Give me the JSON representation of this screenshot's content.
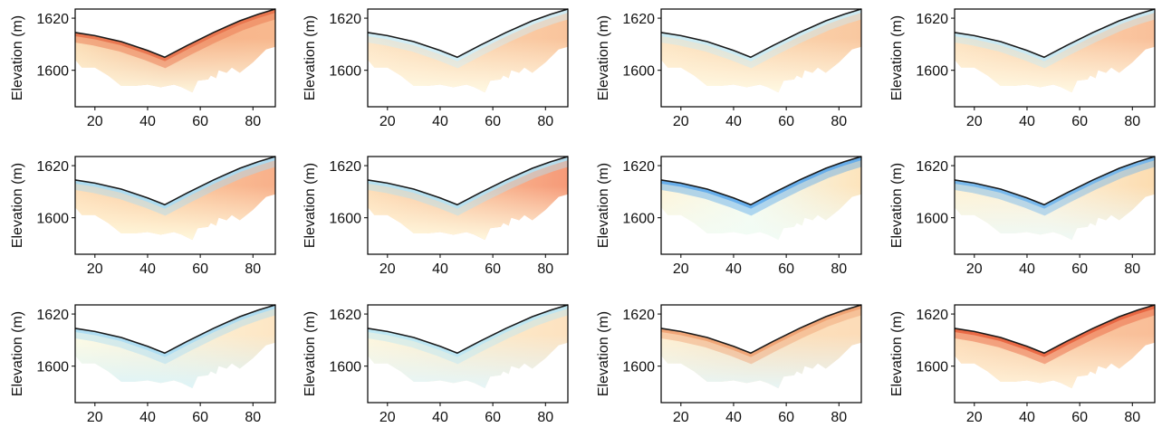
{
  "chart_data": {
    "type": "heatmap",
    "layout": "3 rows x 4 columns",
    "xlim": [
      12.5,
      88.5
    ],
    "ylim": [
      1586,
      1623.5
    ],
    "xticks": [
      20,
      40,
      60,
      80
    ],
    "yticks": [
      1600,
      1620
    ],
    "ylabel": "Elevation (m)",
    "xlabel": "",
    "grid": false,
    "surface_profile": {
      "x": [
        12.5,
        20,
        30,
        40,
        46.5,
        55,
        65,
        75,
        82,
        88.5
      ],
      "y": [
        1614.5,
        1613.3,
        1611,
        1607.6,
        1605,
        1609.5,
        1614.5,
        1619,
        1621.5,
        1623.5
      ]
    },
    "bottom_boundary": {
      "x": [
        12.5,
        15,
        20,
        25,
        30,
        35,
        40,
        45,
        50,
        53,
        57,
        59,
        63,
        64,
        66,
        67,
        70,
        72,
        75,
        80,
        85,
        88.5
      ],
      "y": [
        1604,
        1601,
        1601,
        1598,
        1594,
        1594,
        1594.5,
        1593.5,
        1594.5,
        1593.5,
        1591.5,
        1596,
        1596.5,
        1598,
        1597,
        1600,
        1599,
        1601,
        1599,
        1603,
        1608,
        1609
      ]
    },
    "panels": [
      {
        "surface": "#e8704a",
        "left": "#fbdcb4",
        "center": "#f6b48a",
        "right": "#f8b88e",
        "bottom": "#fdf8e0"
      },
      {
        "surface": "#cdeefa",
        "left": "#fde4c4",
        "center": "#fbd2ac",
        "right": "#f9c49c",
        "bottom": "#fffbe6"
      },
      {
        "surface": "#c8ecf8",
        "left": "#fde4c2",
        "center": "#fbd6b0",
        "right": "#f9c8a0",
        "bottom": "#fffbe6"
      },
      {
        "surface": "#c4eaf8",
        "left": "#fde2c0",
        "center": "#fbd0aa",
        "right": "#f9c09a",
        "bottom": "#fffbe6"
      },
      {
        "surface": "#a6dcf6",
        "left": "#fddcb6",
        "center": "#fbc89e",
        "right": "#f8b08a",
        "bottom": "#fffbe0"
      },
      {
        "surface": "#b0e2f6",
        "left": "#fddcb6",
        "center": "#f9c09a",
        "right": "#f69a78",
        "bottom": "#fffbe2"
      },
      {
        "surface": "#5aa8ec",
        "left": "#fff4d8",
        "center": "#f4fbf0",
        "right": "#fde4bc",
        "bottom": "#f2fcf6"
      },
      {
        "surface": "#6cb4ee",
        "left": "#fff2d4",
        "center": "#fef0d6",
        "right": "#fcdcb0",
        "bottom": "#eefaf8"
      },
      {
        "surface": "#a8dcf4",
        "left": "#fffbe4",
        "center": "#fcf2d8",
        "right": "#fde6c4",
        "bottom": "#dcf4fa"
      },
      {
        "surface": "#b8e6f6",
        "left": "#fff6dc",
        "center": "#fdeccc",
        "right": "#fde2c0",
        "bottom": "#e4f6fa"
      },
      {
        "surface": "#f0a070",
        "left": "#fff0d2",
        "center": "#fce2be",
        "right": "#fcdcb8",
        "bottom": "#e6f6f8"
      },
      {
        "surface": "#e8603c",
        "left": "#fcdab6",
        "center": "#f9c8a0",
        "right": "#f9be98",
        "bottom": "#fff4dc"
      }
    ]
  }
}
